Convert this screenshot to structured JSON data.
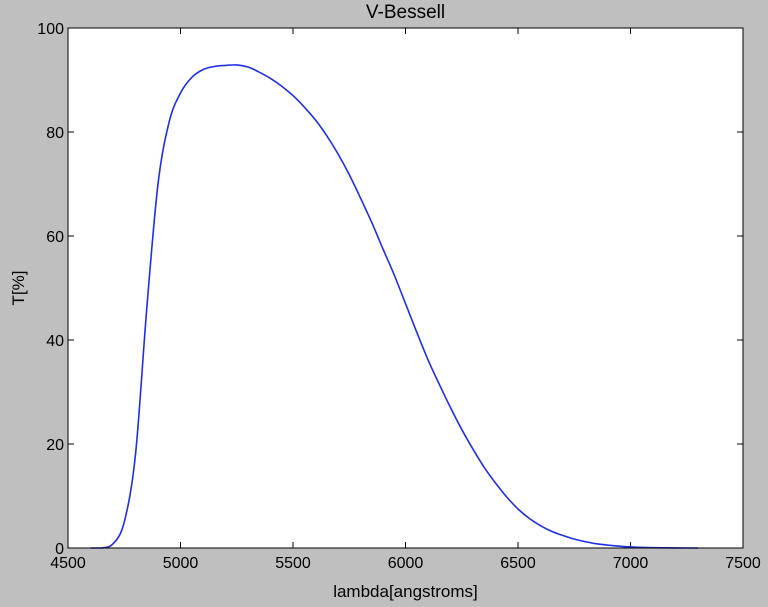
{
  "chart_data": {
    "type": "line",
    "title": "V-Bessell",
    "xlabel": "lambda[angstroms]",
    "ylabel": "T[%]",
    "xlim": [
      4500,
      7500
    ],
    "ylim": [
      0,
      100
    ],
    "xticks": [
      4500,
      5000,
      5500,
      6000,
      6500,
      7000,
      7500
    ],
    "yticks": [
      0,
      20,
      40,
      60,
      80,
      100
    ],
    "grid": false,
    "legend": "none",
    "colors": {
      "series": "#1f2fe8",
      "plot_bg": "#ffffff",
      "figure_bg": "#bfbfbf"
    },
    "series": [
      {
        "x": [
          4600,
          4650,
          4700,
          4750,
          4800,
          4850,
          4900,
          4950,
          5000,
          5050,
          5100,
          5150,
          5200,
          5250,
          5300,
          5350,
          5400,
          5450,
          5500,
          5550,
          5600,
          5650,
          5700,
          5750,
          5800,
          5850,
          5900,
          5950,
          6000,
          6050,
          6100,
          6150,
          6200,
          6250,
          6300,
          6350,
          6400,
          6450,
          6500,
          6550,
          6600,
          6650,
          6700,
          6750,
          6800,
          6850,
          6900,
          6950,
          7000,
          7050,
          7100,
          7150,
          7200,
          7250,
          7300
        ],
        "y": [
          0,
          0,
          0.8,
          5,
          18,
          46,
          70,
          82,
          87.5,
          90.5,
          92,
          92.6,
          92.8,
          92.9,
          92.5,
          91.5,
          90.3,
          88.8,
          87,
          84.8,
          82.3,
          79.3,
          75.8,
          71.8,
          67.3,
          62.6,
          57.5,
          52.5,
          47,
          41.5,
          36.2,
          31.5,
          27,
          22.8,
          19,
          15.5,
          12.5,
          9.8,
          7.5,
          5.7,
          4.3,
          3.2,
          2.4,
          1.7,
          1.2,
          0.8,
          0.55,
          0.35,
          0.2,
          0.12,
          0.06,
          0.03,
          0.01,
          0,
          0
        ]
      }
    ]
  }
}
